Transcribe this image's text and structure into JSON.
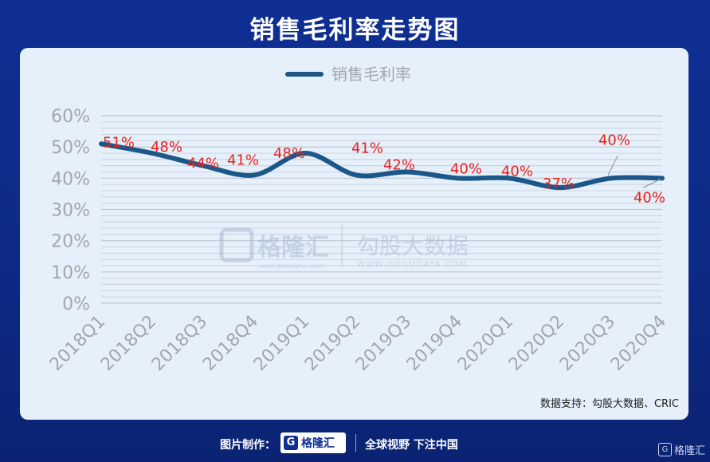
{
  "title": "销售毛利率走势图",
  "source": "数据支持：勾股大数据、CRIC",
  "watermark": {
    "brand": "格隆汇",
    "brand_url": "www.gelonghui.com",
    "partner": "勾股大数据",
    "partner_url": "WWW.GOGUDATA.COM"
  },
  "footer": {
    "credit": "图片制作：",
    "brand": "格隆汇",
    "slogan": "全球视野 下注中国",
    "corner_brand": "格隆汇"
  },
  "colors": {
    "line": "#1b5789",
    "label": "#e8221c",
    "axis_text": "#a3a6ad",
    "grid": "#c4cbd6"
  },
  "chart_data": {
    "type": "line",
    "title": "",
    "xlabel": "",
    "ylabel": "",
    "categories": [
      "2018Q1",
      "2018Q2",
      "2018Q3",
      "2018Q4",
      "2019Q1",
      "2019Q2",
      "2019Q3",
      "2019Q4",
      "2020Q1",
      "2020Q2",
      "2020Q3",
      "2020Q4"
    ],
    "series": [
      {
        "name": "销售毛利率",
        "values": [
          51,
          48,
          44,
          41,
          48,
          41,
          42,
          40,
          40,
          37,
          40,
          40
        ]
      }
    ],
    "data_labels": [
      "51%",
      "48%",
      "44%",
      "41%",
      "48%",
      "41%",
      "42%",
      "40%",
      "40%",
      "37%",
      "40%",
      "40%"
    ],
    "y_ticks": [
      "0%",
      "10%",
      "20%",
      "30%",
      "40%",
      "50%",
      "60%"
    ],
    "ylim": [
      0,
      60
    ],
    "legend_position": "top-center",
    "grid": true
  }
}
